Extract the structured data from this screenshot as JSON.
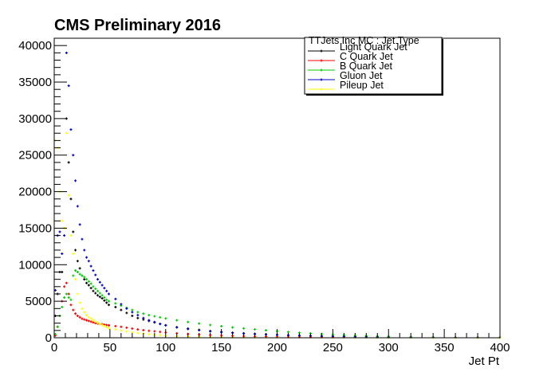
{
  "chart_data": {
    "type": "scatter",
    "title": "CMS Preliminary 2016",
    "xlabel": "Jet Pt",
    "ylabel": "",
    "xlim": [
      0,
      400
    ],
    "ylim": [
      0,
      41000
    ],
    "x_ticks": [
      "0",
      "50",
      "100",
      "150",
      "200",
      "250",
      "300",
      "350",
      "400"
    ],
    "y_ticks": [
      "0",
      "5000",
      "10000",
      "15000",
      "20000",
      "25000",
      "30000",
      "35000",
      "40000"
    ],
    "legend": {
      "header": "TTJets Inc MC : Jet Type",
      "placement": "top-right"
    },
    "x": [
      1,
      3,
      5,
      7,
      9,
      11,
      13,
      15,
      17,
      19,
      21,
      23,
      25,
      27,
      29,
      31,
      33,
      35,
      37,
      39,
      41,
      43,
      45,
      47,
      49,
      55,
      60,
      65,
      70,
      75,
      80,
      85,
      90,
      95,
      100,
      110,
      120,
      130,
      140,
      150,
      160,
      170,
      180,
      190,
      200,
      210,
      220,
      230,
      240,
      250,
      260,
      270,
      280,
      290,
      300,
      320,
      340,
      360,
      380,
      400
    ],
    "series": [
      {
        "name": "Light Quark Jet",
        "color": "#000000",
        "values": [
          3000,
          6000,
          9000,
          9000,
          15000,
          30000,
          24000,
          19000,
          14500,
          12000,
          10500,
          9500,
          8500,
          8000,
          7500,
          7200,
          6800,
          6400,
          6100,
          5800,
          5600,
          5400,
          5100,
          4800,
          4500,
          4200,
          3800,
          3400,
          3000,
          2700,
          2500,
          2300,
          2100,
          1900,
          1700,
          1450,
          1250,
          1080,
          920,
          800,
          700,
          610,
          540,
          470,
          410,
          360,
          320,
          280,
          250,
          220,
          190,
          160,
          140,
          120,
          100,
          80,
          60,
          45,
          35,
          25
        ]
      },
      {
        "name": "C Quark Jet",
        "color": "#ff0000",
        "values": [
          300,
          1500,
          3000,
          5000,
          7000,
          7500,
          6000,
          4500,
          3800,
          3300,
          3000,
          2800,
          2600,
          2500,
          2400,
          2300,
          2200,
          2100,
          2000,
          1950,
          1900,
          1850,
          1800,
          1750,
          1700,
          1600,
          1500,
          1380,
          1260,
          1140,
          1040,
          960,
          880,
          800,
          730,
          620,
          520,
          440,
          370,
          310,
          260,
          220,
          185,
          155,
          130,
          110,
          95,
          80,
          68,
          58,
          48,
          40,
          34,
          28,
          24,
          18,
          13,
          10,
          8,
          6
        ]
      },
      {
        "name": "B Quark Jet",
        "color": "#00cc00",
        "values": [
          500,
          1500,
          3000,
          4200,
          5500,
          6000,
          5500,
          5200,
          8500,
          9200,
          9000,
          8700,
          8500,
          8300,
          8000,
          7700,
          7400,
          7000,
          6700,
          6400,
          6100,
          5800,
          5500,
          5200,
          5000,
          4700,
          4400,
          4100,
          3800,
          3500,
          3300,
          3100,
          2950,
          2800,
          2650,
          2400,
          2150,
          1950,
          1750,
          1580,
          1420,
          1280,
          1150,
          1020,
          900,
          790,
          690,
          600,
          520,
          450,
          380,
          320,
          270,
          220,
          180,
          120,
          80,
          55,
          40,
          30
        ]
      },
      {
        "name": "Gluon Jet",
        "color": "#0000cc",
        "values": [
          6500,
          14000,
          14500,
          11500,
          14000,
          39000,
          34500,
          28500,
          25000,
          21500,
          18000,
          15500,
          13500,
          12000,
          11000,
          10500,
          9800,
          9200,
          8600,
          8000,
          7600,
          7200,
          6800,
          6400,
          6000,
          5300,
          4600,
          4000,
          3500,
          3100,
          2700,
          2400,
          2150,
          1900,
          1700,
          1420,
          1200,
          1030,
          880,
          760,
          660,
          570,
          495,
          430,
          375,
          325,
          280,
          240,
          205,
          175,
          148,
          125,
          105,
          88,
          74,
          52,
          36,
          25,
          18,
          12
        ]
      },
      {
        "name": "Pileup Jet",
        "color": "#ffff00",
        "values": [
          27000,
          26000,
          20000,
          16000,
          15000,
          28000,
          19500,
          14000,
          11500,
          8000,
          6000,
          4800,
          4000,
          3500,
          3100,
          2800,
          2600,
          2400,
          2200,
          2050,
          1900,
          1750,
          1600,
          1450,
          1300,
          1150,
          1000,
          870,
          750,
          640,
          550,
          470,
          400,
          340,
          290,
          220,
          165,
          125,
          95,
          70,
          52,
          38,
          28,
          20,
          15,
          11,
          8,
          6,
          4,
          3,
          2,
          2,
          1,
          1,
          1,
          0,
          0,
          0,
          0,
          0
        ]
      }
    ]
  }
}
